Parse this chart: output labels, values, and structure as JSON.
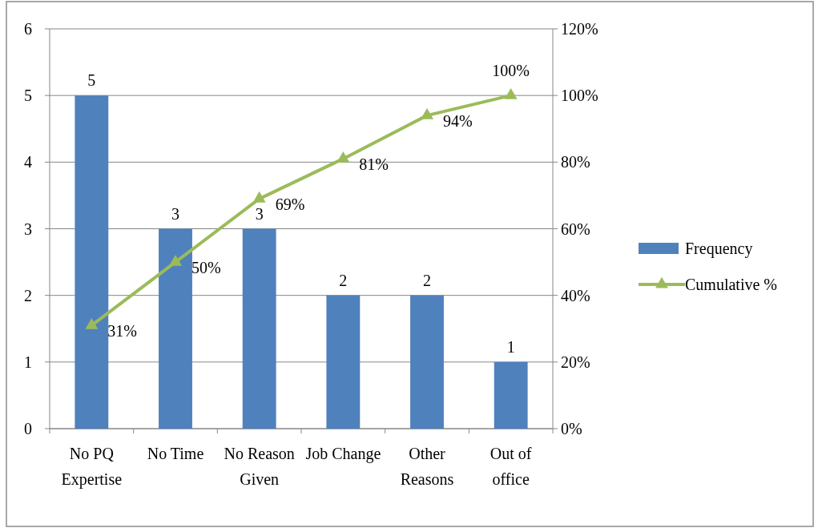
{
  "chart_data": {
    "type": "bar",
    "categories": [
      "No PQ Expertise",
      "No Time",
      "No Reason Given",
      "Job Change",
      "Other Reasons",
      "Out of office"
    ],
    "series": [
      {
        "name": "Frequency",
        "color": "#4f81bd",
        "values": [
          5,
          3,
          3,
          2,
          2,
          1
        ],
        "value_labels": [
          "5",
          "3",
          "3",
          "2",
          "2",
          "1"
        ]
      },
      {
        "name": "Cumulative %",
        "type": "line",
        "axis": "y2",
        "color": "#9bbb59",
        "marker": "triangle",
        "values": [
          31,
          50,
          69,
          81,
          94,
          100
        ],
        "value_labels": [
          "31%",
          "50%",
          "69%",
          "81%",
          "94%",
          "100%"
        ]
      }
    ],
    "ylim": [
      0,
      6
    ],
    "yticks": [
      0,
      1,
      2,
      3,
      4,
      5,
      6
    ],
    "y2lim": [
      0,
      120
    ],
    "y2ticks": [
      {
        "value": 0,
        "label": "0%"
      },
      {
        "value": 20,
        "label": "20%"
      },
      {
        "value": 40,
        "label": "40%"
      },
      {
        "value": 60,
        "label": "60%"
      },
      {
        "value": 80,
        "label": "80%"
      },
      {
        "value": 100,
        "label": "100%"
      },
      {
        "value": 120,
        "label": "120%"
      }
    ],
    "grid": "y",
    "legend": "right"
  }
}
